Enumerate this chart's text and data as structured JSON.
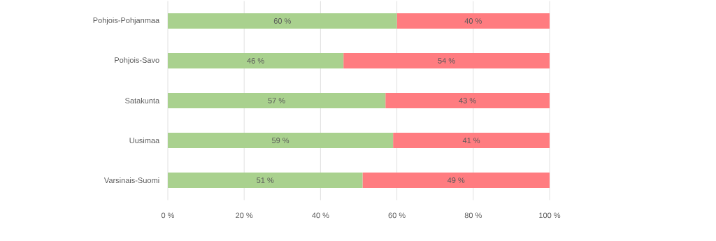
{
  "chart_data": {
    "type": "bar",
    "orientation": "horizontal",
    "stacked": true,
    "categories": [
      "Pohjois-Pohjanmaa",
      "Pohjois-Savo",
      "Satakunta",
      "Uusimaa",
      "Varsinais-Suomi"
    ],
    "series": [
      {
        "color": "#a9d18e",
        "values": [
          60,
          46,
          57,
          59,
          51
        ],
        "value_labels": [
          "60 %",
          "46 %",
          "57 %",
          "59 %",
          "51 %"
        ]
      },
      {
        "color": "#ff7c80",
        "values": [
          40,
          54,
          43,
          41,
          49
        ],
        "value_labels": [
          "40 %",
          "54 %",
          "43 %",
          "41 %",
          "49 %"
        ]
      }
    ],
    "xlim": [
      0,
      100
    ],
    "xticks": [
      {
        "value": 0,
        "label": "0 %"
      },
      {
        "value": 20,
        "label": "20 %"
      },
      {
        "value": 40,
        "label": "40 %"
      },
      {
        "value": 60,
        "label": "60 %"
      },
      {
        "value": 80,
        "label": "80 %"
      },
      {
        "value": 100,
        "label": "100 %"
      }
    ],
    "grid": "x"
  }
}
